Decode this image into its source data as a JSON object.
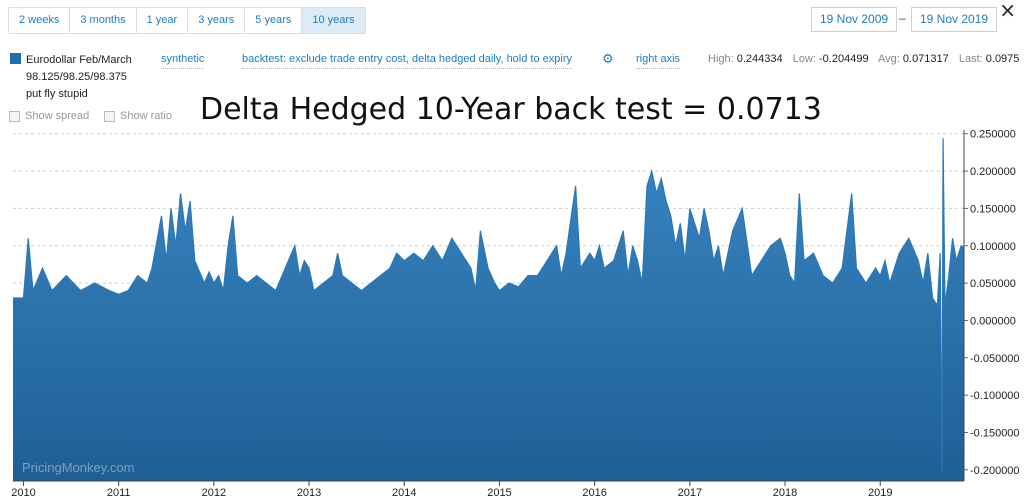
{
  "toolbar": {
    "ranges": [
      "2 weeks",
      "3 months",
      "1 year",
      "3 years",
      "5 years",
      "10 years"
    ],
    "active_range": "10 years",
    "date_from": "19 Nov 2009",
    "date_separator": "–",
    "date_to": "19 Nov 2019",
    "close_icon": "close-icon"
  },
  "legend": {
    "swatch_color": "#1f6fae",
    "name_line1": "Eurodollar Feb/March",
    "name_line2": "98.125/98.25/98.375",
    "name_line3": "put fly stupid"
  },
  "options": {
    "synthetic": "synthetic",
    "backtest": "backtest: exclude trade entry cost, delta hedged daily, hold to expiry",
    "settings_icon": "gear-icon",
    "right_axis": "right axis"
  },
  "stats": {
    "high_label": "High:",
    "high": "0.244334",
    "low_label": "Low:",
    "low": "-0.204499",
    "avg_label": "Avg:",
    "avg": "0.071317",
    "last_label": "Last:",
    "last": "0.0975"
  },
  "checkboxes": {
    "show_spread": "Show spread",
    "show_ratio": "Show ratio"
  },
  "annotation": "Delta Hedged 10-Year back test = 0.0713",
  "watermark": "PricingMonkey.com",
  "chart_data": {
    "type": "area",
    "series": [
      {
        "color": "#2a78b8",
        "points": [
          [
            2009.89,
            0.03
          ],
          [
            2010.0,
            0.03
          ],
          [
            2010.05,
            0.11
          ],
          [
            2010.1,
            0.04
          ],
          [
            2010.2,
            0.07
          ],
          [
            2010.3,
            0.04
          ],
          [
            2010.45,
            0.06
          ],
          [
            2010.6,
            0.04
          ],
          [
            2010.75,
            0.05
          ],
          [
            2010.9,
            0.04
          ],
          [
            2011.0,
            0.035
          ],
          [
            2011.1,
            0.04
          ],
          [
            2011.2,
            0.06
          ],
          [
            2011.3,
            0.05
          ],
          [
            2011.35,
            0.07
          ],
          [
            2011.45,
            0.14
          ],
          [
            2011.5,
            0.08
          ],
          [
            2011.55,
            0.15
          ],
          [
            2011.6,
            0.1
          ],
          [
            2011.65,
            0.17
          ],
          [
            2011.7,
            0.12
          ],
          [
            2011.75,
            0.16
          ],
          [
            2011.8,
            0.08
          ],
          [
            2011.9,
            0.05
          ],
          [
            2011.95,
            0.065
          ],
          [
            2012.0,
            0.05
          ],
          [
            2012.05,
            0.06
          ],
          [
            2012.1,
            0.04
          ],
          [
            2012.15,
            0.1
          ],
          [
            2012.2,
            0.14
          ],
          [
            2012.25,
            0.06
          ],
          [
            2012.35,
            0.05
          ],
          [
            2012.45,
            0.06
          ],
          [
            2012.55,
            0.05
          ],
          [
            2012.65,
            0.04
          ],
          [
            2012.75,
            0.07
          ],
          [
            2012.85,
            0.1
          ],
          [
            2012.9,
            0.06
          ],
          [
            2012.95,
            0.08
          ],
          [
            2013.0,
            0.07
          ],
          [
            2013.05,
            0.04
          ],
          [
            2013.15,
            0.05
          ],
          [
            2013.25,
            0.06
          ],
          [
            2013.3,
            0.09
          ],
          [
            2013.35,
            0.06
          ],
          [
            2013.45,
            0.05
          ],
          [
            2013.55,
            0.04
          ],
          [
            2013.65,
            0.05
          ],
          [
            2013.75,
            0.06
          ],
          [
            2013.85,
            0.07
          ],
          [
            2013.92,
            0.09
          ],
          [
            2014.0,
            0.08
          ],
          [
            2014.1,
            0.09
          ],
          [
            2014.2,
            0.08
          ],
          [
            2014.3,
            0.1
          ],
          [
            2014.4,
            0.08
          ],
          [
            2014.5,
            0.11
          ],
          [
            2014.6,
            0.09
          ],
          [
            2014.7,
            0.07
          ],
          [
            2014.75,
            0.04
          ],
          [
            2014.8,
            0.12
          ],
          [
            2014.88,
            0.07
          ],
          [
            2014.95,
            0.05
          ],
          [
            2015.0,
            0.04
          ],
          [
            2015.1,
            0.05
          ],
          [
            2015.2,
            0.045
          ],
          [
            2015.3,
            0.06
          ],
          [
            2015.4,
            0.06
          ],
          [
            2015.5,
            0.08
          ],
          [
            2015.6,
            0.1
          ],
          [
            2015.65,
            0.06
          ],
          [
            2015.7,
            0.09
          ],
          [
            2015.8,
            0.18
          ],
          [
            2015.85,
            0.07
          ],
          [
            2015.95,
            0.09
          ],
          [
            2016.0,
            0.08
          ],
          [
            2016.05,
            0.1
          ],
          [
            2016.1,
            0.07
          ],
          [
            2016.2,
            0.08
          ],
          [
            2016.3,
            0.12
          ],
          [
            2016.35,
            0.06
          ],
          [
            2016.4,
            0.1
          ],
          [
            2016.45,
            0.08
          ],
          [
            2016.5,
            0.05
          ],
          [
            2016.55,
            0.18
          ],
          [
            2016.6,
            0.2
          ],
          [
            2016.65,
            0.17
          ],
          [
            2016.7,
            0.19
          ],
          [
            2016.75,
            0.16
          ],
          [
            2016.8,
            0.14
          ],
          [
            2016.85,
            0.1
          ],
          [
            2016.9,
            0.13
          ],
          [
            2016.95,
            0.08
          ],
          [
            2017.0,
            0.15
          ],
          [
            2017.05,
            0.13
          ],
          [
            2017.1,
            0.11
          ],
          [
            2017.15,
            0.15
          ],
          [
            2017.2,
            0.12
          ],
          [
            2017.25,
            0.08
          ],
          [
            2017.3,
            0.1
          ],
          [
            2017.35,
            0.06
          ],
          [
            2017.4,
            0.09
          ],
          [
            2017.45,
            0.12
          ],
          [
            2017.55,
            0.15
          ],
          [
            2017.65,
            0.06
          ],
          [
            2017.75,
            0.08
          ],
          [
            2017.85,
            0.1
          ],
          [
            2017.95,
            0.11
          ],
          [
            2018.0,
            0.09
          ],
          [
            2018.05,
            0.06
          ],
          [
            2018.1,
            0.05
          ],
          [
            2018.15,
            0.17
          ],
          [
            2018.2,
            0.08
          ],
          [
            2018.3,
            0.09
          ],
          [
            2018.4,
            0.06
          ],
          [
            2018.5,
            0.05
          ],
          [
            2018.6,
            0.07
          ],
          [
            2018.7,
            0.17
          ],
          [
            2018.75,
            0.07
          ],
          [
            2018.85,
            0.05
          ],
          [
            2018.95,
            0.07
          ],
          [
            2019.0,
            0.06
          ],
          [
            2019.05,
            0.08
          ],
          [
            2019.1,
            0.05
          ],
          [
            2019.2,
            0.09
          ],
          [
            2019.3,
            0.11
          ],
          [
            2019.4,
            0.08
          ],
          [
            2019.45,
            0.05
          ],
          [
            2019.5,
            0.09
          ],
          [
            2019.55,
            0.03
          ],
          [
            2019.6,
            0.02
          ],
          [
            2019.63,
            0.09
          ],
          [
            2019.65,
            -0.204
          ],
          [
            2019.66,
            0.244
          ],
          [
            2019.68,
            0.02
          ],
          [
            2019.72,
            0.06
          ],
          [
            2019.76,
            0.11
          ],
          [
            2019.8,
            0.08
          ],
          [
            2019.85,
            0.1
          ],
          [
            2019.88,
            0.0975
          ]
        ]
      }
    ],
    "x_range": [
      2009.89,
      2019.88
    ],
    "ylim": [
      -0.215,
      0.255
    ],
    "x_ticks": [
      2010,
      2011,
      2012,
      2013,
      2014,
      2015,
      2016,
      2017,
      2018,
      2019
    ],
    "y_ticks": [
      0.25,
      0.2,
      0.15,
      0.1,
      0.05,
      0,
      -0.05,
      -0.1,
      -0.15,
      -0.2
    ],
    "y_tick_labels": [
      "0.250000",
      "0.200000",
      "0.150000",
      "0.100000",
      "0.050000",
      "0.000000",
      "-0.050000",
      "-0.100000",
      "-0.150000",
      "-0.200000"
    ],
    "x_tick_labels": [
      "2010",
      "2011",
      "2012",
      "2013",
      "2014",
      "2015",
      "2016",
      "2017",
      "2018",
      "2019"
    ],
    "y_axis_position": "right",
    "grid": "horizontal dashed"
  }
}
